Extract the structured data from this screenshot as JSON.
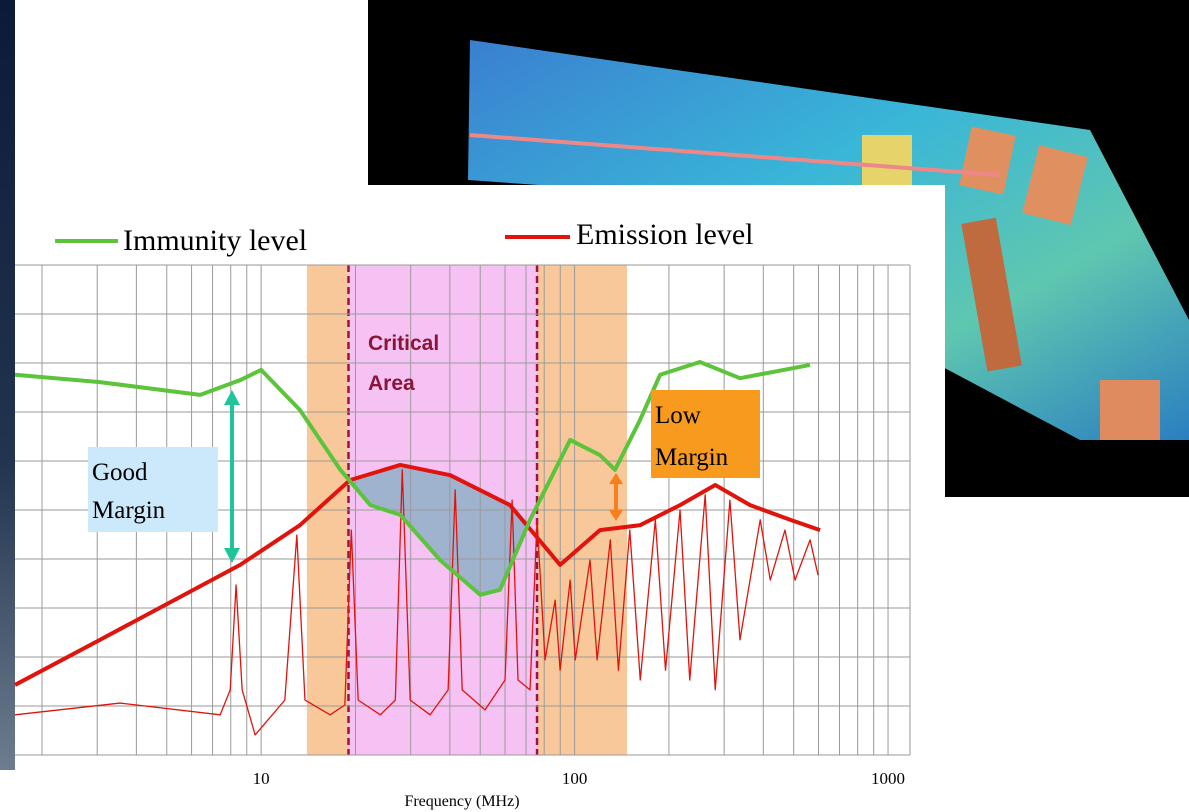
{
  "chart_data": {
    "type": "line",
    "x_label": "Frequency (MHz)",
    "xlim": [
      1.64,
      1175
    ],
    "xticks": [
      10,
      100,
      1000
    ],
    "x_log": true,
    "ylim": [
      0,
      10
    ],
    "grid": true,
    "bands": [
      {
        "from": 14.0,
        "to": 19.0,
        "color": "#f9c89a"
      },
      {
        "from": 19.0,
        "to": 75.9,
        "color": "#f6c2f4"
      },
      {
        "from": 75.9,
        "to": 147,
        "color": "#f9c89a"
      }
    ],
    "dashed_lines": [
      19.0,
      75.9
    ],
    "annotations": {
      "critical": [
        "Critical",
        "Area"
      ],
      "good": [
        "Good",
        "Margin"
      ],
      "low": [
        "Low",
        "Margin"
      ]
    },
    "series": [
      {
        "name": "Immunity level",
        "color": "#5cc43a",
        "width": 4,
        "x": [
          1.64,
          3.06,
          6.39,
          8.57,
          10,
          13.3,
          17.9,
          22.3,
          27.8,
          37.2,
          50.0,
          57.8,
          72.1,
          96.8,
          120.5,
          134.6,
          161.8,
          187.4,
          251,
          337,
          564
        ],
        "values": [
          7.76,
          7.61,
          7.35,
          7.65,
          7.86,
          7.04,
          5.82,
          5.1,
          4.9,
          3.98,
          3.27,
          3.37,
          4.8,
          6.43,
          6.12,
          5.82,
          6.84,
          7.76,
          8.02,
          7.69,
          7.96
        ]
      },
      {
        "name": "Emission level",
        "color": "#e0140c",
        "width": 4,
        "x": [
          1.64,
          3.06,
          8.57,
          13.3,
          19.2,
          27.8,
          40.1,
          62.2,
          89.9,
          120.5,
          161.8,
          217,
          281,
          363,
          487,
          607
        ],
        "values": [
          1.43,
          2.35,
          3.88,
          4.69,
          5.61,
          5.92,
          5.71,
          5.1,
          3.88,
          4.59,
          4.69,
          5.1,
          5.51,
          5.1,
          4.8,
          4.59
        ]
      },
      {
        "color": "#e0140c",
        "width": 1.3,
        "x": [
          1.64,
          3.55,
          7.4,
          7.97,
          8.32,
          8.7,
          9.57,
          11.9,
          13.0,
          13.8,
          16.6,
          18.5,
          19.4,
          20.4,
          24.0,
          26.8,
          28.2,
          29.9,
          34.6,
          39.5,
          41.6,
          43.8,
          51.8,
          60.0,
          63.2,
          66.0,
          72.1,
          75.9,
          80.5,
          86.7,
          89.9,
          96.8,
          100.5,
          112,
          118,
          130,
          138,
          150,
          162,
          181,
          195,
          217,
          233,
          261,
          281,
          313,
          337,
          391,
          421,
          469,
          505,
          564,
          598
        ],
        "values": [
          0.82,
          1.06,
          0.82,
          1.33,
          3.47,
          1.33,
          0.41,
          1.12,
          4.49,
          1.12,
          0.82,
          1.02,
          4.59,
          1.12,
          0.82,
          1.12,
          5.82,
          1.12,
          0.82,
          1.33,
          5.41,
          1.33,
          0.92,
          1.53,
          5.2,
          1.53,
          1.33,
          4.8,
          1.94,
          3.16,
          1.73,
          3.57,
          1.94,
          3.98,
          1.94,
          4.39,
          1.73,
          4.59,
          1.53,
          4.8,
          1.73,
          5.0,
          1.53,
          5.31,
          1.33,
          5.2,
          2.35,
          4.8,
          3.57,
          4.59,
          3.57,
          4.39,
          3.67
        ]
      }
    ]
  }
}
